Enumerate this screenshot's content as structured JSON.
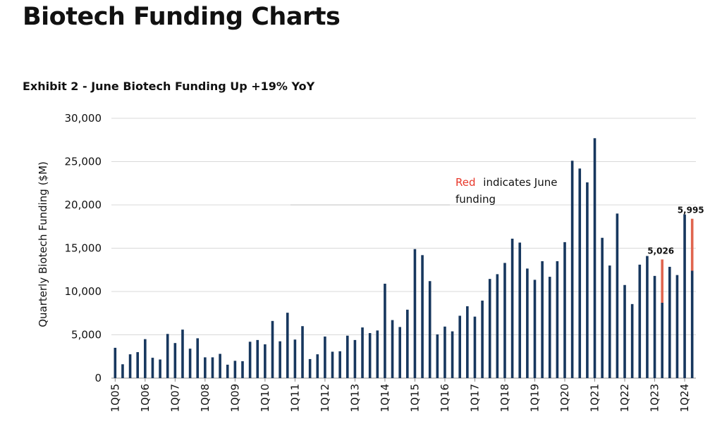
{
  "page": {
    "title": "Biotech Funding Charts"
  },
  "exhibit": {
    "title": "Exhibit 2 - June Biotech Funding Up +19% YoY"
  },
  "colors": {
    "bar": "#17375e",
    "highlight": "#e0654f",
    "grid": "#d9d9d9",
    "text": "#111111"
  },
  "chart_data": {
    "type": "bar",
    "title": "Exhibit 2 - June Biotech Funding Up +19% YoY",
    "ylabel": "Quarterly Biotech Funding ($M)",
    "ylim": [
      0,
      30000
    ],
    "yticks": [
      0,
      5000,
      10000,
      15000,
      20000,
      25000,
      30000
    ],
    "ytick_labels": [
      "0",
      "5,000",
      "10,000",
      "15,000",
      "20,000",
      "25,000",
      "30,000"
    ],
    "grid": true,
    "xtick_labels": [
      "1Q05",
      "1Q06",
      "1Q07",
      "1Q08",
      "1Q09",
      "1Q10",
      "1Q11",
      "1Q12",
      "1Q13",
      "1Q14",
      "1Q15",
      "1Q16",
      "1Q17",
      "1Q18",
      "1Q19",
      "1Q20",
      "1Q21",
      "1Q22",
      "1Q23",
      "1Q24"
    ],
    "categories": [
      "1Q05",
      "2Q05",
      "3Q05",
      "4Q05",
      "1Q06",
      "2Q06",
      "3Q06",
      "4Q06",
      "1Q07",
      "2Q07",
      "3Q07",
      "4Q07",
      "1Q08",
      "2Q08",
      "3Q08",
      "4Q08",
      "1Q09",
      "2Q09",
      "3Q09",
      "4Q09",
      "1Q10",
      "2Q10",
      "3Q10",
      "4Q10",
      "1Q11",
      "2Q11",
      "3Q11",
      "4Q11",
      "1Q12",
      "2Q12",
      "3Q12",
      "4Q12",
      "1Q13",
      "2Q13",
      "3Q13",
      "4Q13",
      "1Q14",
      "2Q14",
      "3Q14",
      "4Q14",
      "1Q15",
      "2Q15",
      "3Q15",
      "4Q15",
      "1Q16",
      "2Q16",
      "3Q16",
      "4Q16",
      "1Q17",
      "2Q17",
      "3Q17",
      "4Q17",
      "1Q18",
      "2Q18",
      "3Q18",
      "4Q18",
      "1Q19",
      "2Q19",
      "3Q19",
      "4Q19",
      "1Q20",
      "2Q20",
      "3Q20",
      "4Q20",
      "1Q21",
      "2Q21",
      "3Q21",
      "4Q21",
      "1Q22",
      "2Q22",
      "3Q22",
      "4Q22",
      "1Q23",
      "2Q23",
      "3Q23",
      "4Q23",
      "1Q24",
      "2Q24"
    ],
    "values": [
      3500,
      1600,
      2750,
      3000,
      4500,
      2350,
      2150,
      5100,
      4050,
      5600,
      3400,
      4600,
      2400,
      2400,
      2800,
      1550,
      2000,
      1950,
      4200,
      4400,
      3900,
      6600,
      4250,
      7550,
      4450,
      6000,
      2200,
      2750,
      4800,
      3050,
      3100,
      4900,
      4400,
      5850,
      5200,
      5500,
      10900,
      6700,
      5900,
      7900,
      14900,
      14200,
      11200,
      5050,
      5950,
      5400,
      7200,
      8300,
      7100,
      8950,
      11450,
      12000,
      13300,
      16100,
      15650,
      12650,
      11350,
      13500,
      11700,
      13500,
      15700,
      25100,
      24200,
      22600,
      27700,
      16200,
      13000,
      19000,
      10750,
      8550,
      13100,
      14100,
      11800,
      13700,
      12850,
      11900,
      18900,
      18400
    ],
    "series": [
      {
        "name": "",
        "values": [
          3500,
          1600,
          2750,
          3000,
          4500,
          2350,
          2150,
          5100,
          4050,
          5600,
          3400,
          4600,
          2400,
          2400,
          2800,
          1550,
          2000,
          1950,
          4200,
          4400,
          3900,
          6600,
          4250,
          7550,
          4450,
          6000,
          2200,
          2750,
          4800,
          3050,
          3100,
          4900,
          4400,
          5850,
          5200,
          5500,
          10900,
          6700,
          5900,
          7900,
          14900,
          14200,
          11200,
          5050,
          5950,
          5400,
          7200,
          8300,
          7100,
          8950,
          11450,
          12000,
          13300,
          16100,
          15650,
          12650,
          11350,
          13500,
          11700,
          13500,
          15700,
          25100,
          24200,
          22600,
          27700,
          16200,
          13000,
          19000,
          10750,
          8550,
          13100,
          14100,
          11800,
          8700,
          12850,
          11900,
          18900,
          12400
        ]
      }
    ],
    "june_segments": [
      {
        "category": "2Q23",
        "value": 5026,
        "label": "5,026"
      },
      {
        "category": "2Q24",
        "value": 5995,
        "label": "5,995"
      }
    ],
    "annotation": {
      "prefix": "Red",
      "text": "indicates June",
      "text2": "funding"
    }
  }
}
